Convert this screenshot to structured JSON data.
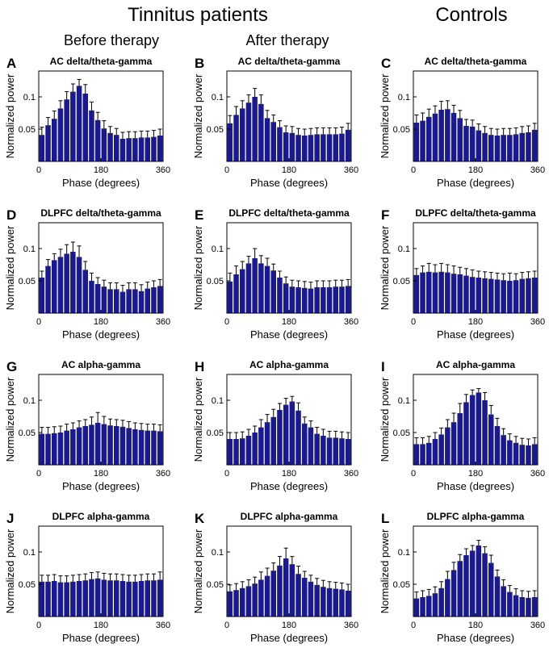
{
  "header": {
    "group_patients": "Tinnitus patients",
    "group_controls": "Controls",
    "col_before": "Before therapy",
    "col_after": "After therapy"
  },
  "common": {
    "xlabel": "Phase (degrees)",
    "ylabel": "Normalized power",
    "xticks": [
      0,
      180,
      360
    ],
    "yticks": [
      0.05,
      0.1
    ],
    "ylim": [
      0,
      0.14
    ],
    "xlim": [
      0,
      360
    ],
    "bar_color": "#1a1a8c"
  },
  "chart_data": [
    {
      "id": "A",
      "type": "bar",
      "title": "AC delta/theta-gamma",
      "x": [
        9,
        27,
        45,
        63,
        81,
        99,
        117,
        135,
        153,
        171,
        189,
        207,
        225,
        243,
        261,
        279,
        297,
        315,
        333,
        351
      ],
      "values": [
        0.041,
        0.056,
        0.066,
        0.082,
        0.096,
        0.108,
        0.117,
        0.105,
        0.079,
        0.064,
        0.051,
        0.044,
        0.041,
        0.035,
        0.036,
        0.036,
        0.037,
        0.037,
        0.038,
        0.04
      ],
      "errors": [
        0.012,
        0.012,
        0.012,
        0.012,
        0.012,
        0.012,
        0.01,
        0.014,
        0.013,
        0.012,
        0.012,
        0.01,
        0.01,
        0.01,
        0.01,
        0.01,
        0.01,
        0.01,
        0.01,
        0.01
      ]
    },
    {
      "id": "B",
      "type": "bar",
      "title": "AC delta/theta-gamma",
      "x": [
        9,
        27,
        45,
        63,
        81,
        99,
        117,
        135,
        153,
        171,
        189,
        207,
        225,
        243,
        261,
        279,
        297,
        315,
        333,
        351
      ],
      "values": [
        0.059,
        0.072,
        0.082,
        0.091,
        0.1,
        0.089,
        0.067,
        0.061,
        0.053,
        0.045,
        0.044,
        0.041,
        0.04,
        0.041,
        0.042,
        0.042,
        0.042,
        0.042,
        0.043,
        0.049
      ],
      "errors": [
        0.012,
        0.013,
        0.012,
        0.012,
        0.013,
        0.014,
        0.012,
        0.011,
        0.01,
        0.01,
        0.01,
        0.01,
        0.01,
        0.01,
        0.01,
        0.01,
        0.01,
        0.01,
        0.01,
        0.01
      ]
    },
    {
      "id": "C",
      "type": "bar",
      "title": "AC delta/theta-gamma",
      "x": [
        9,
        27,
        45,
        63,
        81,
        99,
        117,
        135,
        153,
        171,
        189,
        207,
        225,
        243,
        261,
        279,
        297,
        315,
        333,
        351
      ],
      "values": [
        0.06,
        0.063,
        0.069,
        0.074,
        0.08,
        0.081,
        0.075,
        0.067,
        0.055,
        0.054,
        0.048,
        0.044,
        0.041,
        0.04,
        0.041,
        0.041,
        0.042,
        0.044,
        0.045,
        0.049
      ],
      "errors": [
        0.012,
        0.012,
        0.012,
        0.012,
        0.013,
        0.013,
        0.012,
        0.012,
        0.01,
        0.01,
        0.01,
        0.01,
        0.01,
        0.01,
        0.01,
        0.01,
        0.01,
        0.01,
        0.01,
        0.01
      ]
    },
    {
      "id": "D",
      "type": "bar",
      "title": "DLPFC delta/theta-gamma",
      "x": [
        9,
        27,
        45,
        63,
        81,
        99,
        117,
        135,
        153,
        171,
        189,
        207,
        225,
        243,
        261,
        279,
        297,
        315,
        333,
        351
      ],
      "values": [
        0.055,
        0.073,
        0.082,
        0.087,
        0.092,
        0.095,
        0.087,
        0.067,
        0.05,
        0.045,
        0.041,
        0.037,
        0.037,
        0.033,
        0.037,
        0.037,
        0.034,
        0.038,
        0.04,
        0.042
      ],
      "errors": [
        0.01,
        0.01,
        0.01,
        0.012,
        0.014,
        0.015,
        0.017,
        0.013,
        0.012,
        0.01,
        0.01,
        0.01,
        0.01,
        0.01,
        0.01,
        0.01,
        0.01,
        0.01,
        0.01,
        0.01
      ]
    },
    {
      "id": "E",
      "type": "bar",
      "title": "DLPFC delta/theta-gamma",
      "x": [
        9,
        27,
        45,
        63,
        81,
        99,
        117,
        135,
        153,
        171,
        189,
        207,
        225,
        243,
        261,
        279,
        297,
        315,
        333,
        351
      ],
      "values": [
        0.049,
        0.06,
        0.068,
        0.077,
        0.085,
        0.077,
        0.073,
        0.066,
        0.055,
        0.046,
        0.041,
        0.04,
        0.039,
        0.038,
        0.04,
        0.04,
        0.04,
        0.041,
        0.041,
        0.042
      ],
      "errors": [
        0.013,
        0.013,
        0.012,
        0.011,
        0.015,
        0.012,
        0.012,
        0.01,
        0.01,
        0.01,
        0.01,
        0.01,
        0.01,
        0.01,
        0.01,
        0.01,
        0.01,
        0.01,
        0.01,
        0.01
      ]
    },
    {
      "id": "F",
      "type": "bar",
      "title": "DLPFC delta/theta-gamma",
      "x": [
        9,
        27,
        45,
        63,
        81,
        99,
        117,
        135,
        153,
        171,
        189,
        207,
        225,
        243,
        261,
        279,
        297,
        315,
        333,
        351
      ],
      "values": [
        0.059,
        0.063,
        0.064,
        0.063,
        0.064,
        0.063,
        0.061,
        0.06,
        0.058,
        0.056,
        0.055,
        0.054,
        0.053,
        0.052,
        0.051,
        0.05,
        0.051,
        0.053,
        0.054,
        0.055
      ],
      "errors": [
        0.01,
        0.01,
        0.013,
        0.012,
        0.013,
        0.012,
        0.012,
        0.011,
        0.011,
        0.011,
        0.01,
        0.01,
        0.01,
        0.01,
        0.01,
        0.012,
        0.01,
        0.01,
        0.01,
        0.01
      ]
    },
    {
      "id": "G",
      "type": "bar",
      "title": "AC alpha-gamma",
      "x": [
        9,
        27,
        45,
        63,
        81,
        99,
        117,
        135,
        153,
        171,
        189,
        207,
        225,
        243,
        261,
        279,
        297,
        315,
        333,
        351
      ],
      "values": [
        0.048,
        0.048,
        0.049,
        0.05,
        0.053,
        0.055,
        0.058,
        0.06,
        0.062,
        0.065,
        0.063,
        0.061,
        0.06,
        0.059,
        0.057,
        0.055,
        0.054,
        0.053,
        0.053,
        0.052
      ],
      "errors": [
        0.01,
        0.01,
        0.01,
        0.01,
        0.01,
        0.01,
        0.01,
        0.01,
        0.012,
        0.016,
        0.012,
        0.01,
        0.01,
        0.01,
        0.01,
        0.01,
        0.01,
        0.01,
        0.01,
        0.01
      ]
    },
    {
      "id": "H",
      "type": "bar",
      "title": "AC alpha-gamma",
      "x": [
        9,
        27,
        45,
        63,
        81,
        99,
        117,
        135,
        153,
        171,
        189,
        207,
        225,
        243,
        261,
        279,
        297,
        315,
        333,
        351
      ],
      "values": [
        0.04,
        0.04,
        0.041,
        0.045,
        0.05,
        0.058,
        0.066,
        0.074,
        0.085,
        0.093,
        0.098,
        0.084,
        0.064,
        0.058,
        0.048,
        0.045,
        0.042,
        0.042,
        0.041,
        0.04
      ],
      "errors": [
        0.01,
        0.01,
        0.01,
        0.01,
        0.01,
        0.012,
        0.012,
        0.012,
        0.01,
        0.01,
        0.008,
        0.012,
        0.01,
        0.01,
        0.01,
        0.01,
        0.01,
        0.01,
        0.01,
        0.01
      ]
    },
    {
      "id": "I",
      "type": "bar",
      "title": "AC alpha-gamma",
      "x": [
        9,
        27,
        45,
        63,
        81,
        99,
        117,
        135,
        153,
        171,
        189,
        207,
        225,
        243,
        261,
        279,
        297,
        315,
        333,
        351
      ],
      "values": [
        0.032,
        0.032,
        0.034,
        0.04,
        0.047,
        0.058,
        0.066,
        0.08,
        0.097,
        0.108,
        0.112,
        0.1,
        0.078,
        0.06,
        0.046,
        0.038,
        0.034,
        0.031,
        0.03,
        0.032
      ],
      "errors": [
        0.01,
        0.01,
        0.01,
        0.01,
        0.01,
        0.012,
        0.014,
        0.015,
        0.012,
        0.008,
        0.006,
        0.012,
        0.014,
        0.012,
        0.01,
        0.01,
        0.01,
        0.01,
        0.01,
        0.01
      ]
    },
    {
      "id": "J",
      "type": "bar",
      "title": "DLPFC alpha-gamma",
      "x": [
        9,
        27,
        45,
        63,
        81,
        99,
        117,
        135,
        153,
        171,
        189,
        207,
        225,
        243,
        261,
        279,
        297,
        315,
        333,
        351
      ],
      "values": [
        0.054,
        0.054,
        0.055,
        0.053,
        0.053,
        0.054,
        0.055,
        0.056,
        0.058,
        0.059,
        0.057,
        0.056,
        0.056,
        0.055,
        0.054,
        0.054,
        0.055,
        0.056,
        0.056,
        0.057
      ],
      "errors": [
        0.01,
        0.01,
        0.01,
        0.01,
        0.01,
        0.01,
        0.01,
        0.01,
        0.01,
        0.01,
        0.01,
        0.01,
        0.01,
        0.01,
        0.01,
        0.01,
        0.01,
        0.01,
        0.01,
        0.012
      ]
    },
    {
      "id": "K",
      "type": "bar",
      "title": "DLPFC alpha-gamma",
      "x": [
        9,
        27,
        45,
        63,
        81,
        99,
        117,
        135,
        153,
        171,
        189,
        207,
        225,
        243,
        261,
        279,
        297,
        315,
        333,
        351
      ],
      "values": [
        0.039,
        0.041,
        0.044,
        0.047,
        0.051,
        0.057,
        0.063,
        0.071,
        0.079,
        0.09,
        0.081,
        0.066,
        0.06,
        0.054,
        0.049,
        0.046,
        0.044,
        0.043,
        0.042,
        0.04
      ],
      "errors": [
        0.01,
        0.01,
        0.01,
        0.01,
        0.01,
        0.012,
        0.012,
        0.012,
        0.014,
        0.016,
        0.012,
        0.012,
        0.01,
        0.01,
        0.01,
        0.01,
        0.01,
        0.01,
        0.01,
        0.01
      ]
    },
    {
      "id": "L",
      "type": "bar",
      "title": "DLPFC alpha-gamma",
      "x": [
        9,
        27,
        45,
        63,
        81,
        99,
        117,
        135,
        153,
        171,
        189,
        207,
        225,
        243,
        261,
        279,
        297,
        315,
        333,
        351
      ],
      "values": [
        0.028,
        0.03,
        0.032,
        0.036,
        0.044,
        0.058,
        0.072,
        0.086,
        0.095,
        0.102,
        0.11,
        0.098,
        0.083,
        0.062,
        0.047,
        0.038,
        0.033,
        0.03,
        0.029,
        0.03
      ],
      "errors": [
        0.01,
        0.01,
        0.01,
        0.01,
        0.01,
        0.012,
        0.012,
        0.01,
        0.01,
        0.008,
        0.008,
        0.01,
        0.012,
        0.01,
        0.01,
        0.01,
        0.01,
        0.01,
        0.01,
        0.01
      ]
    }
  ]
}
